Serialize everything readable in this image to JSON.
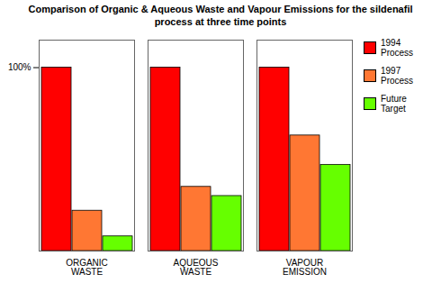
{
  "chart_data": {
    "type": "bar",
    "title": "Comparison of Organic & Aqueous Waste and Vapour Emissions for the sildenafil\nprocess at three time points",
    "categories": [
      "ORGANIC\nWASTE",
      "AQUEOUS\nWASTE",
      "VAPOUR\nEMISSION"
    ],
    "series": [
      {
        "name": "1994\nProcess",
        "color": "#FF0000",
        "values": [
          100,
          100,
          100
        ]
      },
      {
        "name": "1997\nProcess",
        "color": "#FF7733",
        "values": [
          22,
          35,
          63
        ]
      },
      {
        "name": "Future\nTarget",
        "color": "#66FF00",
        "values": [
          8,
          30,
          47
        ]
      }
    ],
    "ylim": [
      0,
      115
    ],
    "yticks": [
      {
        "value": 100,
        "label": "100%"
      }
    ],
    "grid": false,
    "legend": "upper right"
  }
}
